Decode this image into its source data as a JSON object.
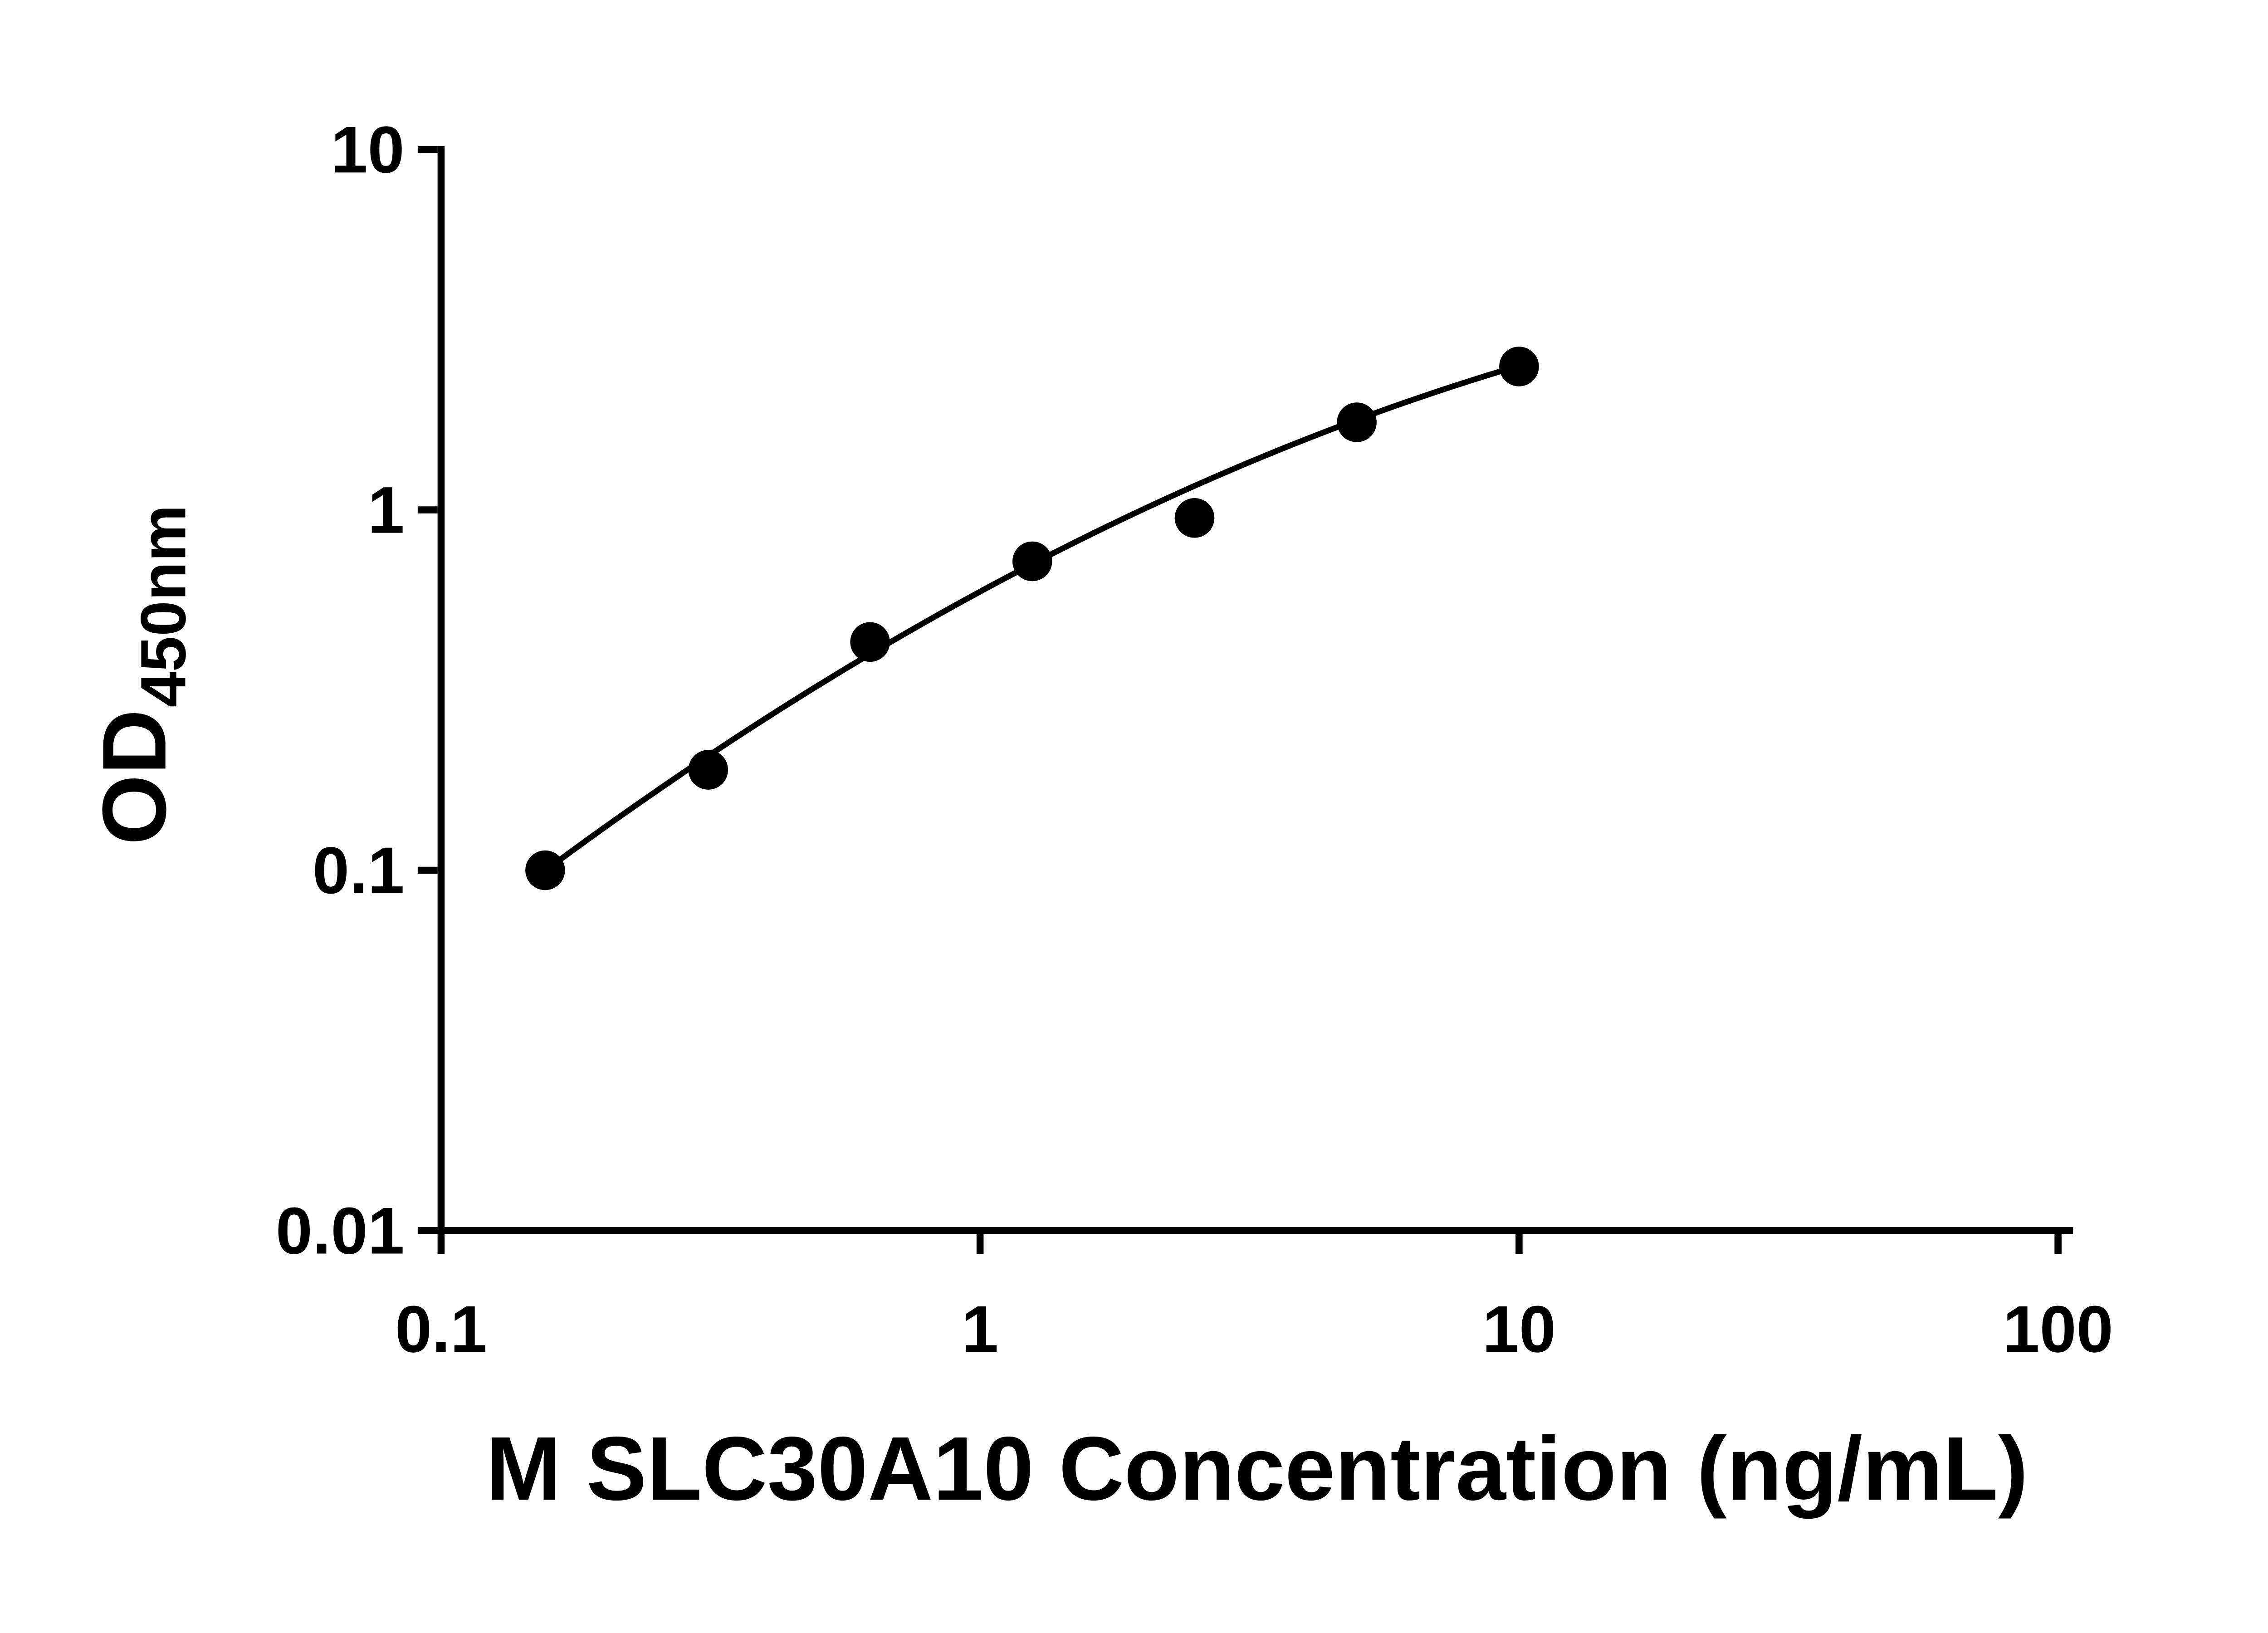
{
  "chart_data": {
    "type": "scatter",
    "title": "",
    "xlabel": "M SLC30A10 Concentration (ng/mL)",
    "ylabel_main": "OD",
    "ylabel_sub": "450nm",
    "x_scale": "log",
    "y_scale": "log",
    "xlim": [
      0.1,
      100
    ],
    "ylim": [
      0.01,
      10
    ],
    "x_ticks": [
      0.1,
      1,
      10,
      100
    ],
    "x_tick_labels": [
      "0.1",
      "1",
      "10",
      "100"
    ],
    "y_ticks": [
      0.01,
      0.1,
      1,
      10
    ],
    "y_tick_labels": [
      "0.01",
      "0.1",
      "1",
      "10"
    ],
    "grid": false,
    "legend": false,
    "points": [
      {
        "x": 0.156,
        "y": 0.1
      },
      {
        "x": 0.313,
        "y": 0.19
      },
      {
        "x": 0.625,
        "y": 0.43
      },
      {
        "x": 1.25,
        "y": 0.72
      },
      {
        "x": 2.5,
        "y": 0.95
      },
      {
        "x": 5.0,
        "y": 1.75
      },
      {
        "x": 10.0,
        "y": 2.5
      }
    ],
    "fit_line": {
      "description": "smooth fitted standard curve through the points",
      "model": "quadratic in log10-log10 space: log10(y) = a + b*u + c*u^2, u = log10(x)",
      "a": -0.2269,
      "b": 0.8109,
      "c": -0.184,
      "u_min": -0.79,
      "u_max": 1.0
    },
    "colors": {
      "points": "#000000",
      "line": "#000000",
      "axis": "#000000",
      "text": "#000000",
      "background": "#ffffff"
    }
  }
}
